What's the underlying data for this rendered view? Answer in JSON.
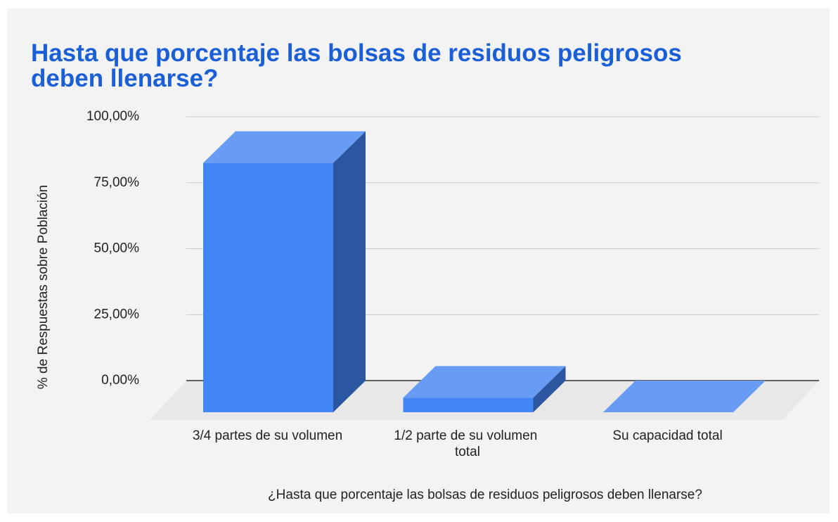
{
  "chart_data": {
    "type": "bar3d",
    "title": "Hasta que porcentaje las bolsas de residuos peligrosos deben llenarse?",
    "x_label": "¿Hasta que porcentaje las bolsas de residuos peligrosos deben llenarse?",
    "y_label": "% de Respuestas sobre Población",
    "categories": [
      "3/4 partes de su volumen",
      "1/2 parte de su volumen total",
      "Su capacidad total"
    ],
    "values": [
      94.5,
      5.5,
      0
    ],
    "color": "#4285f4",
    "ylim": [
      0,
      100
    ],
    "yticks": [
      {
        "value": 0,
        "label": "0,00%"
      },
      {
        "value": 25,
        "label": "25,00%"
      },
      {
        "value": 50,
        "label": "50,00%"
      },
      {
        "value": 75,
        "label": "75,00%"
      },
      {
        "value": 100,
        "label": "100,00%"
      }
    ],
    "grid": true
  }
}
